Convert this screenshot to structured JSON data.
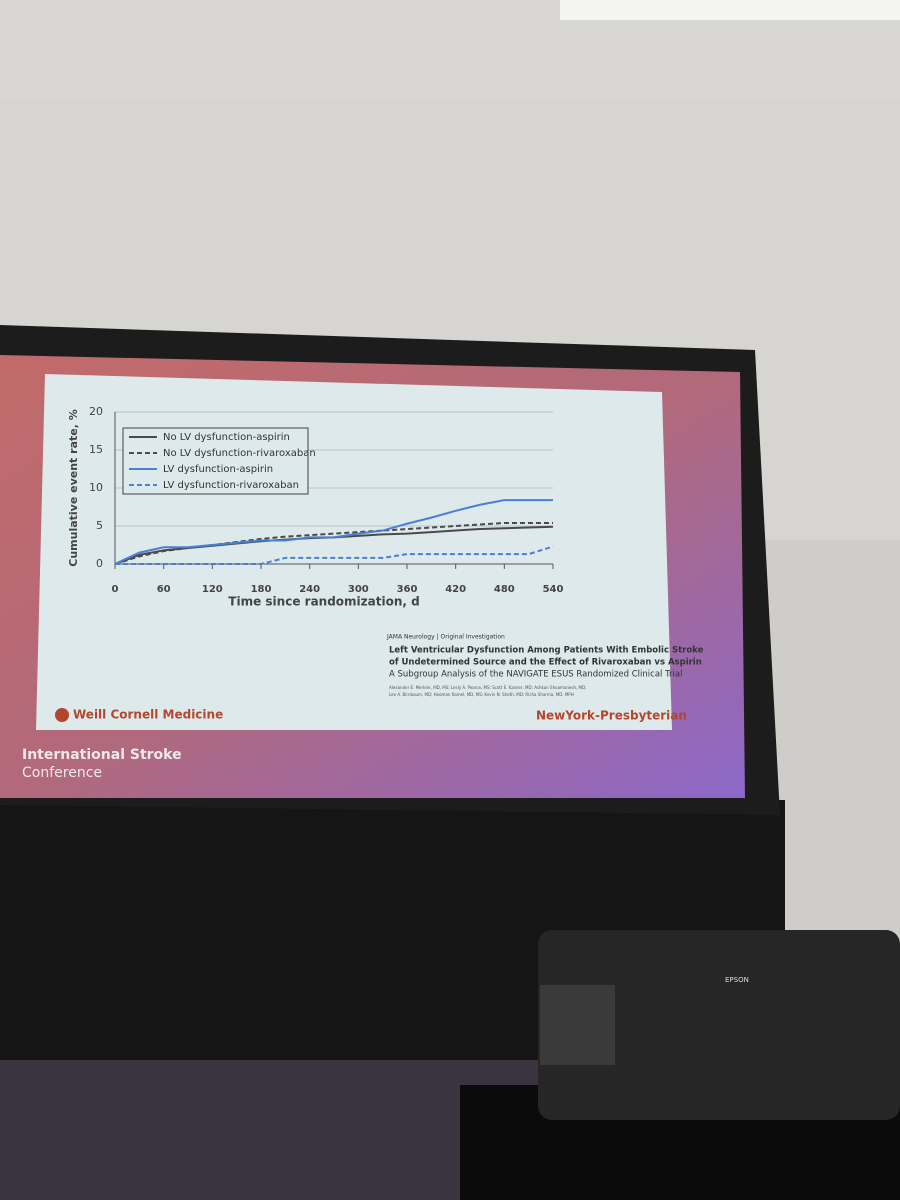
{
  "chart_data": {
    "type": "line",
    "xlabel": "Time since randomization, d",
    "ylabel": "Cumulative event rate, %",
    "x": [
      0,
      30,
      60,
      90,
      120,
      150,
      180,
      210,
      240,
      270,
      300,
      330,
      360,
      390,
      420,
      450,
      480,
      510,
      540
    ],
    "series": [
      {
        "name": "No LV dysfunction-aspirin",
        "color": "#4a4a4a",
        "dash": false,
        "values": [
          0,
          1.2,
          1.8,
          2.1,
          2.4,
          2.7,
          3.0,
          3.2,
          3.4,
          3.5,
          3.7,
          3.9,
          4.0,
          4.2,
          4.4,
          4.6,
          4.7,
          4.8,
          4.9
        ]
      },
      {
        "name": "No LV dysfunction-rivaroxaban",
        "color": "#4a4a4a",
        "dash": true,
        "values": [
          0,
          1.0,
          1.7,
          2.1,
          2.5,
          2.9,
          3.3,
          3.6,
          3.8,
          4.0,
          4.2,
          4.4,
          4.6,
          4.8,
          5.0,
          5.2,
          5.4,
          5.4,
          5.4
        ]
      },
      {
        "name": "LV dysfunction-aspirin",
        "color": "#4a7fd6",
        "dash": false,
        "values": [
          0,
          1.5,
          2.2,
          2.2,
          2.5,
          2.8,
          3.1,
          3.1,
          3.5,
          3.5,
          4.0,
          4.4,
          5.3,
          6.1,
          7.0,
          7.8,
          8.4,
          8.4,
          8.4
        ]
      },
      {
        "name": "LV dysfunction-rivaroxaban",
        "color": "#4a7fd6",
        "dash": true,
        "values": [
          0,
          0,
          0,
          0,
          0,
          0,
          0,
          0.8,
          0.8,
          0.8,
          0.8,
          0.8,
          1.3,
          1.3,
          1.3,
          1.3,
          1.3,
          1.3,
          2.3
        ]
      }
    ],
    "xlim": [
      0,
      540
    ],
    "xticks": [
      0,
      60,
      120,
      180,
      240,
      300,
      360,
      420,
      480,
      540
    ],
    "ylim": [
      0,
      20
    ],
    "yticks": [
      0,
      5,
      10,
      15,
      20
    ],
    "grid": true,
    "legend": "upper-left"
  },
  "article": {
    "journal": "JAMA Neurology | Original Investigation",
    "title": [
      "Left Ventricular Dysfunction Among Patients With Embolic Stroke",
      "of Undetermined Source and the Effect of Rivaroxaban vs Aspirin",
      "A Subgroup Analysis of the NAVIGATE ESUS Randomized Clinical Trial"
    ],
    "authors": [
      "Alexander E. Merkler, MD, MS; Lesly A. Pearce, MS; Scott E. Kasner, MD; Ashkan Shoamanesh, MD;",
      "Lee A. Birnbaum, MD; Hooman Kamel, MD, MS; Kevin N. Sheth, MD; Richa Sharma, MD, MPH"
    ]
  },
  "logos": {
    "left": "Weill Cornell Medicine",
    "right": "NewYork-Presbyterian"
  },
  "conference": [
    "International Stroke",
    "Conference"
  ],
  "projector": {
    "brand": "EPSON"
  }
}
